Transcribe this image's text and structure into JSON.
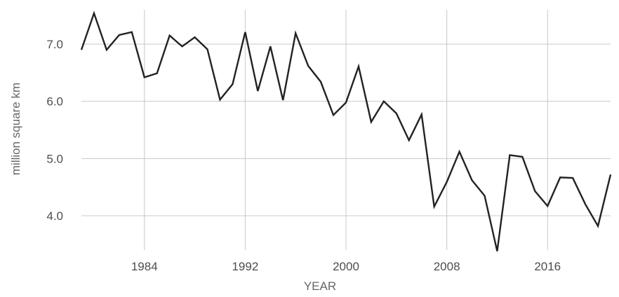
{
  "chart_data": {
    "type": "line",
    "title": "",
    "xlabel": "YEAR",
    "ylabel": "million square km",
    "xlim": [
      1979,
      2021
    ],
    "ylim": [
      3.4,
      7.6
    ],
    "x_ticks": [
      1984,
      1992,
      2000,
      2008,
      2016
    ],
    "y_ticks": [
      4.0,
      5.0,
      6.0,
      7.0
    ],
    "y_tick_labels": [
      "4.0",
      "5.0",
      "6.0",
      "7.0"
    ],
    "grid": true,
    "legend": "none",
    "line_color": "#222222",
    "grid_color": "#c8c8c8",
    "series": [
      {
        "x": [
          1979,
          1980,
          1981,
          1982,
          1983,
          1984,
          1985,
          1986,
          1987,
          1988,
          1989,
          1990,
          1991,
          1992,
          1993,
          1994,
          1995,
          1996,
          1997,
          1998,
          1999,
          2000,
          2001,
          2002,
          2003,
          2004,
          2005,
          2006,
          2007,
          2008,
          2009,
          2010,
          2011,
          2012,
          2013,
          2014,
          2015,
          2016,
          2017,
          2018,
          2019,
          2020,
          2021
        ],
        "values": [
          6.9,
          7.54,
          6.9,
          7.16,
          7.21,
          6.42,
          6.49,
          7.15,
          6.96,
          7.12,
          6.91,
          6.03,
          6.3,
          7.21,
          6.18,
          6.96,
          6.02,
          7.19,
          6.62,
          6.34,
          5.76,
          5.98,
          6.61,
          5.64,
          6.0,
          5.79,
          5.32,
          5.77,
          4.16,
          4.59,
          5.12,
          4.62,
          4.35,
          3.38,
          5.06,
          5.03,
          4.43,
          4.17,
          4.67,
          4.66,
          4.2,
          3.82,
          4.72
        ]
      }
    ]
  }
}
